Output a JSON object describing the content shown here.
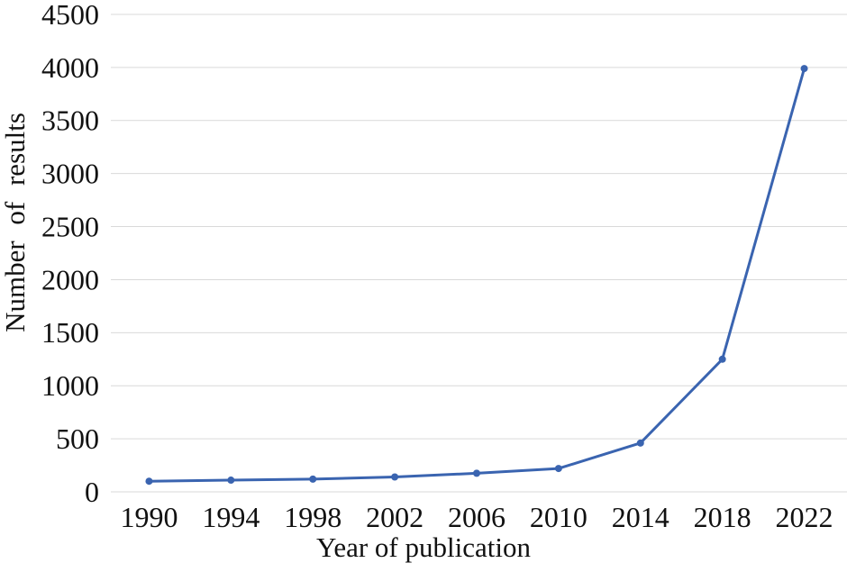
{
  "figure": {
    "background": "#ffffff"
  },
  "chart_data": {
    "type": "line",
    "title": "",
    "xlabel": "Year of publication",
    "ylabel": "Number of results",
    "categories": [
      "1990",
      "1994",
      "1998",
      "2002",
      "2006",
      "2010",
      "2014",
      "2018",
      "2022"
    ],
    "series": [
      {
        "name": "Number of results",
        "values": [
          100,
          110,
          120,
          140,
          175,
          220,
          460,
          1250,
          3990
        ],
        "color": "#3A64B0",
        "marker": "circle"
      }
    ],
    "ylim": [
      0,
      4500
    ],
    "yticks": [
      0,
      500,
      1000,
      1500,
      2000,
      2500,
      3000,
      3500,
      4000,
      4500
    ],
    "grid": "horizontal",
    "gridline_color": "#D9D9D9",
    "legend": "none",
    "text_color": "#111111"
  }
}
